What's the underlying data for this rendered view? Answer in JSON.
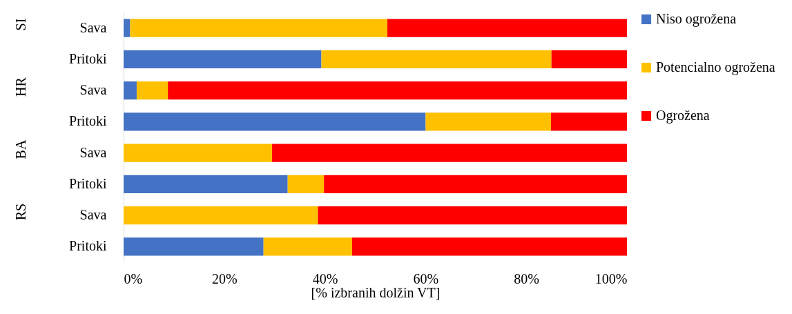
{
  "chart_data": {
    "type": "bar",
    "orientation": "horizontal",
    "stacked": true,
    "categories": [
      "Sava",
      "Pritoki",
      "Sava",
      "Pritoki",
      "Sava",
      "Pritoki",
      "Sava",
      "Pritoki"
    ],
    "series": [
      {
        "name": "Niso ogrožena",
        "color": "#4472c4",
        "values": [
          1.3,
          39.3,
          2.6,
          60.0,
          null,
          32.6,
          null,
          27.8
        ]
      },
      {
        "name": "Potencialno ogrožena",
        "color": "#ffc000",
        "values": [
          51.1,
          45.7,
          6.2,
          24.9,
          29.5,
          7.2,
          38.6,
          17.6
        ]
      },
      {
        "name": "Ogrožena",
        "color": "#ff0000",
        "values": [
          47.6,
          15.0,
          91.2,
          15.1,
          70.5,
          60.2,
          61.4,
          54.6
        ]
      }
    ],
    "annotations": [
      "SI",
      "HR",
      "BA",
      "RS"
    ],
    "xlabel": "[% izbranih dolžin VT]",
    "xlim": [
      0,
      100
    ],
    "xticks": [
      {
        "value": 0,
        "label": "0%"
      },
      {
        "value": 20,
        "label": "20%"
      },
      {
        "value": 40,
        "label": "40%"
      },
      {
        "value": 60,
        "label": "60%"
      },
      {
        "value": 80,
        "label": "80%"
      },
      {
        "value": 100,
        "label": "100%"
      }
    ],
    "grid": false,
    "legend": "right"
  }
}
